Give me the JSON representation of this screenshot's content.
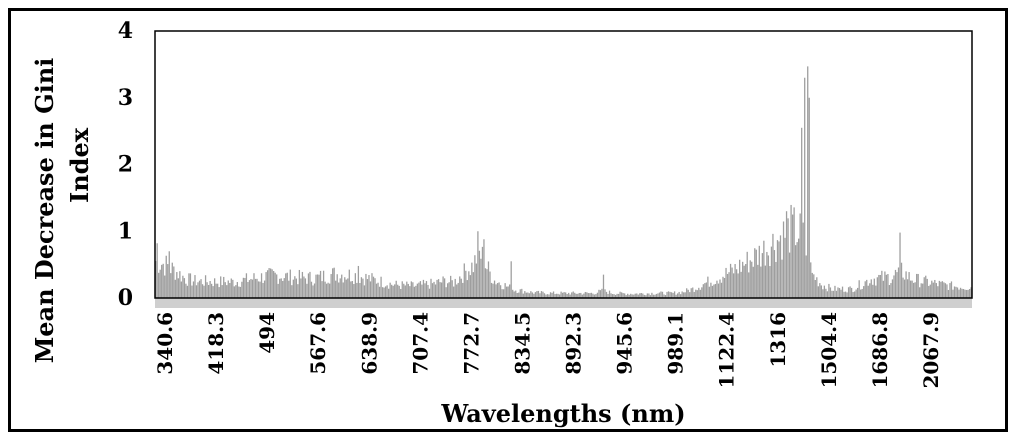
{
  "chart_data": {
    "type": "bar",
    "title": "",
    "xlabel": "Wavelengths (nm)",
    "ylabel_lines": [
      "Mean Decrease in Gini",
      "Index"
    ],
    "ylim": [
      0,
      4
    ],
    "yticks": [
      "0",
      "1",
      "2",
      "3",
      "4"
    ],
    "xtick_labels": [
      "340.6",
      "418.3",
      "494",
      "567.6",
      "638.9",
      "707.4",
      "772.7",
      "834.5",
      "892.3",
      "945.6",
      "989.1",
      "1122.4",
      "1316",
      "1504.4",
      "1686.8",
      "2067.9"
    ],
    "bar_color": "#9e9e9e",
    "baseline_color": "#cfcfcf",
    "grid": false,
    "legend": "none",
    "profile": [
      [
        0,
        0.62
      ],
      [
        0.5,
        0.55
      ],
      [
        1,
        0.45
      ],
      [
        1.5,
        0.32
      ],
      [
        2,
        0.28
      ],
      [
        3,
        0.27
      ],
      [
        4,
        0.27
      ],
      [
        5,
        0.33
      ],
      [
        6,
        0.38
      ],
      [
        7,
        0.34
      ],
      [
        8,
        0.33
      ],
      [
        9,
        0.4
      ],
      [
        10,
        0.38
      ],
      [
        11,
        0.3
      ],
      [
        12,
        0.22
      ],
      [
        13,
        0.2
      ],
      [
        14,
        0.24
      ],
      [
        14.5,
        0.28
      ],
      [
        15,
        0.26
      ],
      [
        15.6,
        0.45
      ],
      [
        16,
        0.55
      ],
      [
        16.2,
        0.75
      ],
      [
        16.4,
        0.7
      ],
      [
        16.6,
        0.55
      ],
      [
        17,
        0.3
      ],
      [
        17.5,
        0.22
      ],
      [
        18,
        0.14
      ],
      [
        19,
        0.09
      ],
      [
        20,
        0.08
      ],
      [
        21,
        0.08
      ],
      [
        22,
        0.08
      ],
      [
        22.5,
        0.12
      ],
      [
        23,
        0.08
      ],
      [
        24,
        0.07
      ],
      [
        25,
        0.08
      ],
      [
        26,
        0.08
      ],
      [
        26.5,
        0.1
      ],
      [
        27,
        0.15
      ],
      [
        28,
        0.3
      ],
      [
        29,
        0.45
      ],
      [
        30,
        0.65
      ],
      [
        31,
        0.9
      ],
      [
        32,
        1.15
      ],
      [
        32.5,
        1.05
      ],
      [
        33,
        0.4
      ],
      [
        33.5,
        0.22
      ],
      [
        34,
        0.15
      ],
      [
        35,
        0.15
      ],
      [
        36,
        0.32
      ],
      [
        37,
        0.35
      ],
      [
        37.5,
        0.45
      ],
      [
        38,
        0.32
      ],
      [
        39,
        0.25
      ],
      [
        40,
        0.2
      ],
      [
        41,
        0.18
      ]
    ],
    "highlights": [
      {
        "pos": 0.05,
        "value": 0.82
      },
      {
        "pos": 0.7,
        "value": 0.7
      },
      {
        "pos": 10.2,
        "value": 0.48
      },
      {
        "pos": 16.2,
        "value": 1.0
      },
      {
        "pos": 16.5,
        "value": 0.88
      },
      {
        "pos": 17.9,
        "value": 0.55
      },
      {
        "pos": 22.5,
        "value": 0.35
      },
      {
        "pos": 31.7,
        "value": 1.3
      },
      {
        "pos": 32.0,
        "value": 1.25
      },
      {
        "pos": 32.5,
        "value": 2.55
      },
      {
        "pos": 32.65,
        "value": 3.3
      },
      {
        "pos": 32.75,
        "value": 3.47
      },
      {
        "pos": 32.85,
        "value": 3.0
      },
      {
        "pos": 37.4,
        "value": 0.98
      }
    ]
  }
}
